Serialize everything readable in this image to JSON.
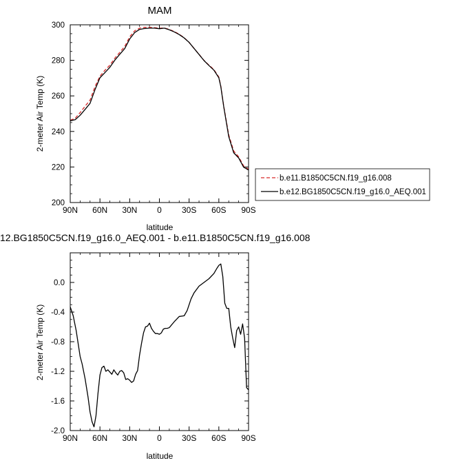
{
  "chart_data": [
    {
      "type": "line",
      "title": "MAM",
      "xlabel": "latitude",
      "ylabel": "2-meter Air Temp (K)",
      "xlim": [
        90,
        -90
      ],
      "ylim": [
        200,
        300
      ],
      "x_ticks": [
        90,
        60,
        30,
        0,
        -30,
        -60,
        -90
      ],
      "x_tick_labels": [
        "90N",
        "60N",
        "30N",
        "0",
        "30S",
        "60S",
        "90S"
      ],
      "y_ticks": [
        200,
        220,
        240,
        260,
        280,
        300
      ],
      "y_tick_labels": [
        "200",
        "220",
        "240",
        "260",
        "280",
        "300"
      ],
      "grid": false,
      "legend_position": "right",
      "series": [
        {
          "name": "b.e11.B1850C5CN.f19_g16.008",
          "color": "#d62728",
          "dash": "dashed",
          "x": [
            90,
            85,
            80,
            75,
            70,
            65,
            60,
            55,
            50,
            45,
            40,
            35,
            30,
            25,
            20,
            15,
            10,
            5,
            0,
            -5,
            -10,
            -15,
            -20,
            -25,
            -30,
            -35,
            -40,
            -45,
            -50,
            -55,
            -60,
            -62,
            -65,
            -70,
            -75,
            -80,
            -85,
            -90
          ],
          "values": [
            246.3,
            247.4,
            250.6,
            254.2,
            257.6,
            265.2,
            271.1,
            274.4,
            277.3,
            281.2,
            284.5,
            287.8,
            293.2,
            296.6,
            298.1,
            298.6,
            298.6,
            298.4,
            298.1,
            298.2,
            297.4,
            296.2,
            294.7,
            292.7,
            290.1,
            286.7,
            283.4,
            280.0,
            277.3,
            274.8,
            270.6,
            265.5,
            254.0,
            238.0,
            229.0,
            225.7,
            220.6,
            218.7
          ]
        },
        {
          "name": "b.e12.BG1850C5CN.f19_g16.0_AEQ.001",
          "color": "#000000",
          "dash": "solid",
          "x": [
            90,
            85,
            80,
            75,
            70,
            65,
            60,
            55,
            50,
            45,
            40,
            35,
            30,
            25,
            20,
            15,
            10,
            5,
            0,
            -5,
            -10,
            -15,
            -20,
            -25,
            -30,
            -35,
            -40,
            -45,
            -50,
            -55,
            -60,
            -62,
            -65,
            -70,
            -75,
            -80,
            -85,
            -90
          ],
          "values": [
            246.0,
            246.6,
            249.1,
            252.4,
            255.8,
            263.5,
            270.2,
            273.1,
            276.1,
            280.1,
            283.4,
            286.6,
            292.0,
            295.6,
            297.4,
            297.9,
            298.1,
            298.1,
            297.8,
            298.1,
            297.2,
            296.0,
            294.5,
            292.6,
            290.1,
            286.7,
            283.3,
            279.9,
            277.1,
            274.5,
            270.2,
            265.2,
            253.7,
            237.1,
            228.0,
            225.1,
            219.9,
            218.3
          ]
        }
      ]
    },
    {
      "type": "line",
      "title": "12.BG1850C5CN.f19_g16.0_AEQ.001 - b.e11.B1850C5CN.f19_g16.008",
      "xlabel": "latitude",
      "ylabel": "2-meter Air Temp (K)",
      "xlim": [
        90,
        -90
      ],
      "ylim": [
        -2.0,
        0.4
      ],
      "x_ticks": [
        90,
        60,
        30,
        0,
        -30,
        -60,
        -90
      ],
      "x_tick_labels": [
        "90N",
        "60N",
        "30N",
        "0",
        "30S",
        "60S",
        "90S"
      ],
      "y_ticks": [
        -2.0,
        -1.6,
        -1.2,
        -0.8,
        -0.4,
        0.0
      ],
      "y_tick_labels": [
        "-2.0",
        "-1.6",
        "-1.2",
        "-0.8",
        "-0.4",
        "0.0"
      ],
      "grid": false,
      "series": [
        {
          "color": "#000000",
          "dash": "solid",
          "x": [
            90,
            87,
            84,
            80,
            78,
            75,
            72,
            70,
            68,
            66,
            64,
            62,
            60,
            58,
            56,
            54,
            52,
            50,
            48,
            46,
            44,
            42,
            40,
            38,
            36,
            34,
            32,
            30,
            28,
            26,
            24,
            22,
            20,
            18,
            16,
            14,
            12,
            10,
            8,
            6,
            4,
            2,
            0,
            -2,
            -4,
            -6,
            -8,
            -10,
            -15,
            -20,
            -25,
            -28,
            -32,
            -35,
            -40,
            -45,
            -50,
            -55,
            -58,
            -60,
            -62,
            -64,
            -65,
            -66,
            -68,
            -70,
            -72,
            -74,
            -76,
            -78,
            -80,
            -82,
            -84,
            -86,
            -88,
            -90
          ],
          "values": [
            -0.33,
            -0.45,
            -0.65,
            -1.0,
            -1.1,
            -1.3,
            -1.55,
            -1.75,
            -1.88,
            -1.95,
            -1.8,
            -1.5,
            -1.25,
            -1.15,
            -1.13,
            -1.2,
            -1.18,
            -1.21,
            -1.24,
            -1.18,
            -1.22,
            -1.25,
            -1.2,
            -1.19,
            -1.22,
            -1.31,
            -1.3,
            -1.32,
            -1.35,
            -1.33,
            -1.24,
            -1.19,
            -0.98,
            -0.82,
            -0.68,
            -0.6,
            -0.59,
            -0.55,
            -0.62,
            -0.66,
            -0.69,
            -0.69,
            -0.7,
            -0.68,
            -0.63,
            -0.62,
            -0.62,
            -0.61,
            -0.53,
            -0.46,
            -0.45,
            -0.38,
            -0.22,
            -0.14,
            -0.05,
            0.0,
            0.05,
            0.12,
            0.19,
            0.23,
            0.25,
            0.08,
            -0.1,
            -0.28,
            -0.35,
            -0.35,
            -0.6,
            -0.75,
            -0.88,
            -0.65,
            -0.6,
            -0.7,
            -0.56,
            -0.75,
            -1.42,
            -1.45
          ]
        }
      ]
    }
  ]
}
